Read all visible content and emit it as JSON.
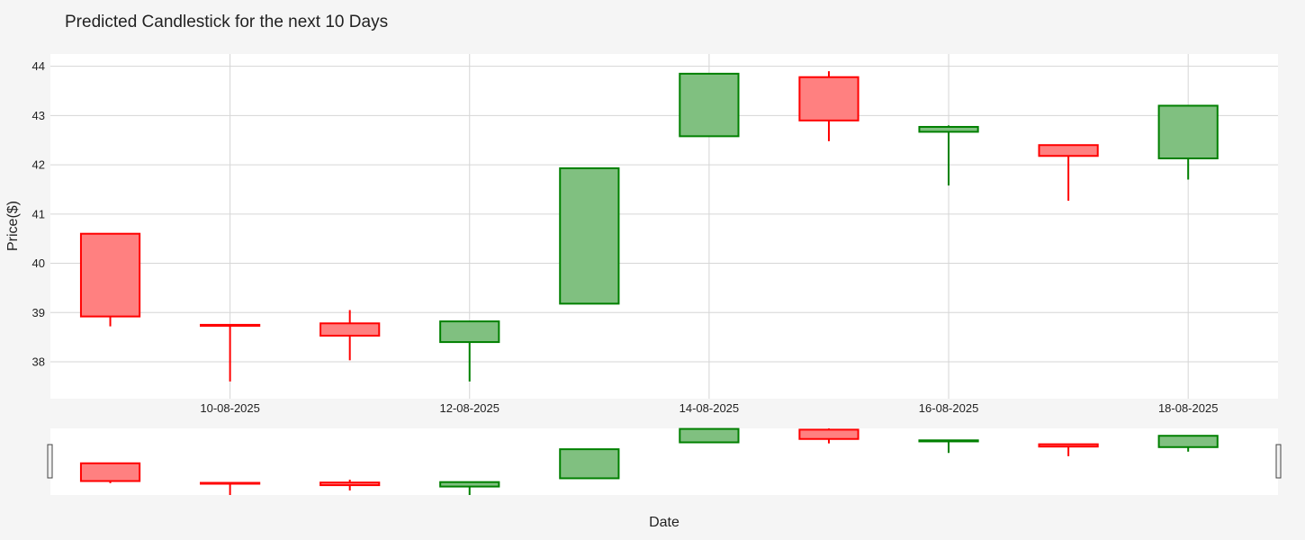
{
  "chart_data": {
    "type": "candlestick",
    "title": "Predicted Candlestick for the next 10 Days",
    "xlabel": "Date",
    "ylabel": "Price($)",
    "ylim": [
      37.25,
      44.25
    ],
    "y_ticks": [
      38,
      39,
      40,
      41,
      42,
      43,
      44
    ],
    "x_tick_labels": [
      "10-08-2025",
      "12-08-2025",
      "14-08-2025",
      "16-08-2025",
      "18-08-2025"
    ],
    "x_tick_dates": [
      "2025-08-10",
      "2025-08-12",
      "2025-08-14",
      "2025-08-16",
      "2025-08-18"
    ],
    "x_range": [
      "2025-08-08T12:00",
      "2025-08-18T18:00"
    ],
    "grid": true,
    "rangeslider": true,
    "colors": {
      "increasing": "#008000",
      "decreasing": "#ff0000",
      "increasing_fill": "#80c080",
      "decreasing_fill": "#ff8080"
    },
    "candles": [
      {
        "date": "2025-08-09",
        "open": 40.6,
        "high": 40.6,
        "low": 38.72,
        "close": 38.92
      },
      {
        "date": "2025-08-10",
        "open": 38.75,
        "high": 38.75,
        "low": 37.6,
        "close": 38.73
      },
      {
        "date": "2025-08-11",
        "open": 38.78,
        "high": 39.05,
        "low": 38.03,
        "close": 38.53
      },
      {
        "date": "2025-08-12",
        "open": 38.4,
        "high": 38.82,
        "low": 37.6,
        "close": 38.82
      },
      {
        "date": "2025-08-13",
        "open": 39.18,
        "high": 41.93,
        "low": 39.18,
        "close": 41.93
      },
      {
        "date": "2025-08-14",
        "open": 42.58,
        "high": 43.85,
        "low": 42.58,
        "close": 43.85
      },
      {
        "date": "2025-08-15",
        "open": 43.78,
        "high": 43.9,
        "low": 42.48,
        "close": 42.9
      },
      {
        "date": "2025-08-16",
        "open": 42.67,
        "high": 42.8,
        "low": 41.58,
        "close": 42.77
      },
      {
        "date": "2025-08-17",
        "open": 42.4,
        "high": 42.4,
        "low": 41.27,
        "close": 42.18
      },
      {
        "date": "2025-08-18",
        "open": 42.13,
        "high": 43.2,
        "low": 41.7,
        "close": 43.2
      }
    ]
  }
}
